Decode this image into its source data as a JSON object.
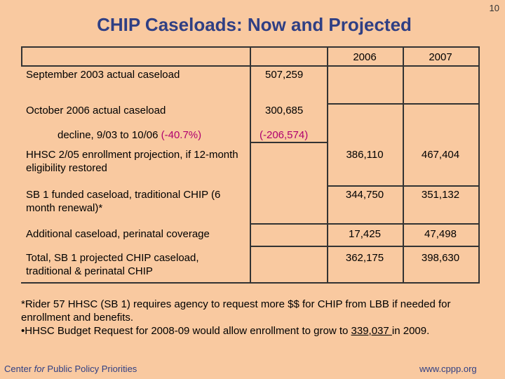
{
  "slide_number": "10",
  "title": "CHIP Caseloads: Now and Projected",
  "table": {
    "columns": [
      "2006",
      "2007"
    ],
    "rows": [
      {
        "label": "September 2003 actual caseload",
        "actual": "507,259",
        "y2006": "",
        "y2007": ""
      },
      {
        "label": "October 2006 actual caseload",
        "actual": "300,685",
        "y2006": "",
        "y2007": ""
      },
      {
        "label_prefix": "decline, 9/03 to 10/06 ",
        "label_pct": "(-40.7%)",
        "actual": "(-206,574)",
        "y2006": "",
        "y2007": ""
      },
      {
        "label": "HHSC 2/05 enrollment projection, if 12-month eligibility restored",
        "actual": "",
        "y2006": "386,110",
        "y2007": "467,404"
      },
      {
        "label": "SB 1 funded caseload, traditional CHIP (6 month renewal)*",
        "actual": "",
        "y2006": "344,750",
        "y2007": "351,132"
      },
      {
        "label": "Additional caseload, perinatal coverage",
        "actual": "",
        "y2006": "17,425",
        "y2007": "47,498"
      },
      {
        "label": "Total, SB 1 projected CHIP caseload, traditional & perinatal CHIP",
        "actual": "",
        "y2006": "362,175",
        "y2007": "398,630"
      }
    ]
  },
  "footnote": {
    "line1": "*Rider 57 HHSC (SB 1) requires agency to request more $$ for CHIP from LBB if needed for enrollment and benefits.",
    "line2_prefix": "•HHSC Budget Request for 2008-09 would allow enrollment to grow to ",
    "line2_value": "339,037 ",
    "line2_suffix": "in 2009."
  },
  "footer": {
    "org_pre": "Center ",
    "org_italic": "for",
    "org_post": " Public Policy Priorities",
    "url": "www.cppp.org"
  },
  "colors": {
    "background": "#f9c9a0",
    "title": "#2f3f84",
    "negative": "#b0006e"
  }
}
